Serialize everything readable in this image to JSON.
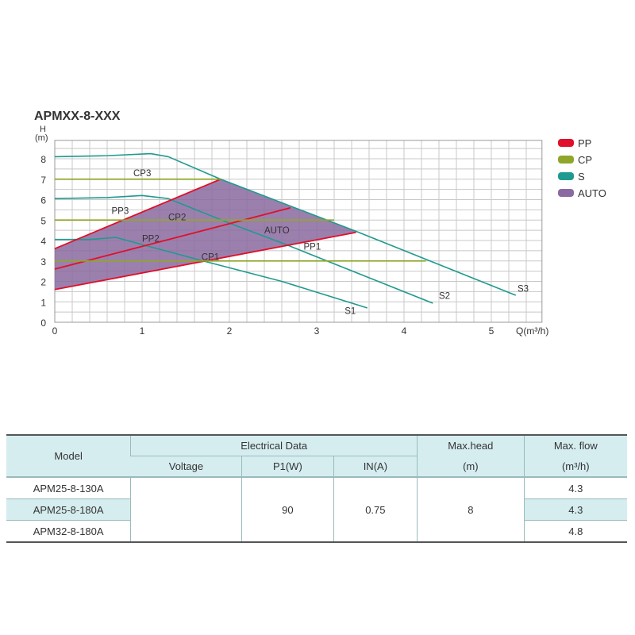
{
  "chart_data": {
    "type": "line",
    "title": "APMXX-8-XXX",
    "ylabel_top": "H",
    "ylabel_unit": "(m)",
    "xlabel": "Q(m³/h)",
    "xlim": [
      0,
      5.58
    ],
    "ylim": [
      0,
      8.9
    ],
    "xticks": [
      "0",
      "1",
      "2",
      "3",
      "4",
      "5"
    ],
    "yticks": [
      "0",
      "1",
      "2",
      "3",
      "4",
      "5",
      "6",
      "7",
      "8"
    ],
    "grid": true,
    "legend_placement": "right",
    "legend": [
      {
        "name": "PP",
        "color": "#e0102a"
      },
      {
        "name": "CP",
        "color": "#8fa62a"
      },
      {
        "name": "S",
        "color": "#1f9a8f"
      },
      {
        "name": "AUTO",
        "color": "#8a6aa0"
      }
    ],
    "series": [
      {
        "name": "S3",
        "group": "S",
        "points": [
          [
            0,
            8.1
          ],
          [
            0.6,
            8.15
          ],
          [
            1.1,
            8.25
          ],
          [
            1.3,
            8.1
          ],
          [
            1.9,
            7.0
          ],
          [
            3.45,
            4.45
          ],
          [
            5.28,
            1.32
          ]
        ]
      },
      {
        "name": "S2",
        "group": "S",
        "points": [
          [
            0,
            6.05
          ],
          [
            0.6,
            6.1
          ],
          [
            1.0,
            6.2
          ],
          [
            1.3,
            6.05
          ],
          [
            2.0,
            4.85
          ],
          [
            2.65,
            3.8
          ],
          [
            4.33,
            0.93
          ]
        ]
      },
      {
        "name": "S1",
        "group": "S",
        "points": [
          [
            0,
            4.05
          ],
          [
            0.4,
            4.05
          ],
          [
            0.7,
            4.15
          ],
          [
            1.0,
            3.8
          ],
          [
            1.7,
            3.0
          ],
          [
            2.6,
            2.0
          ],
          [
            3.58,
            0.7
          ]
        ]
      },
      {
        "name": "PP3",
        "group": "PP",
        "points": [
          [
            0,
            3.6
          ],
          [
            1.9,
            7.0
          ]
        ]
      },
      {
        "name": "PP2",
        "group": "PP",
        "points": [
          [
            0,
            2.6
          ],
          [
            2.7,
            5.6
          ]
        ]
      },
      {
        "name": "PP1",
        "group": "PP",
        "points": [
          [
            0,
            1.6
          ],
          [
            3.45,
            4.4
          ]
        ]
      },
      {
        "name": "CP3",
        "group": "CP",
        "points": [
          [
            0,
            7.0
          ],
          [
            1.9,
            7.0
          ]
        ]
      },
      {
        "name": "CP2",
        "group": "CP",
        "points": [
          [
            0,
            5.0
          ],
          [
            3.2,
            5.0
          ]
        ]
      },
      {
        "name": "CP1",
        "group": "CP",
        "points": [
          [
            0,
            3.0
          ],
          [
            4.25,
            3.0
          ]
        ]
      }
    ],
    "auto_region": [
      [
        0,
        1.6
      ],
      [
        0,
        3.6
      ],
      [
        1.9,
        7.0
      ],
      [
        3.45,
        4.45
      ],
      [
        3.45,
        4.4
      ]
    ],
    "annotations": [
      {
        "text": "CP3",
        "x": 0.9,
        "y": 7.15
      },
      {
        "text": "PP3",
        "x": 0.65,
        "y": 5.3
      },
      {
        "text": "CP2",
        "x": 1.3,
        "y": 5.0
      },
      {
        "text": "PP2",
        "x": 1.0,
        "y": 3.95
      },
      {
        "text": "AUTO",
        "x": 2.4,
        "y": 4.35
      },
      {
        "text": "PP1",
        "x": 2.85,
        "y": 3.55
      },
      {
        "text": "CP1",
        "x": 1.68,
        "y": 3.05
      },
      {
        "text": "S1",
        "x": 3.32,
        "y": 0.4
      },
      {
        "text": "S2",
        "x": 4.4,
        "y": 1.15
      },
      {
        "text": "S3",
        "x": 5.3,
        "y": 1.5
      }
    ]
  },
  "table": {
    "headers": {
      "model": "Model",
      "electrical": "Electrical Data",
      "voltage": "Voltage",
      "p1": "P1(W)",
      "in": "IN(A)",
      "maxhead": "Max.head",
      "maxhead_unit": "(m)",
      "maxflow": "Max. flow",
      "maxflow_unit": "(m³/h)"
    },
    "rows": [
      {
        "model": "APM25-8-130A",
        "max_flow": "4.3"
      },
      {
        "model": "APM25-8-180A",
        "max_flow": "4.3"
      },
      {
        "model": "APM32-8-180A",
        "max_flow": "4.8"
      }
    ],
    "shared": {
      "voltage": "",
      "p1": "90",
      "in": "0.75",
      "max_head": "8"
    }
  }
}
